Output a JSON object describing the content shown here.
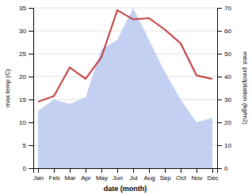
{
  "chart_data": {
    "type": "line",
    "xlabel": "date (month)",
    "ylabel": "max temp (C)",
    "y2label": "med. precipitation (kg/m2)",
    "categories": [
      "Jan",
      "Feb",
      "Mar",
      "Apr",
      "May",
      "Jun",
      "Jul",
      "Aug",
      "Sep",
      "Oct",
      "Nov",
      "Dec"
    ],
    "series": [
      {
        "type": "area",
        "color": "#b8c8f0",
        "values": [
          12.5,
          15.0,
          14.0,
          15.5,
          26.0,
          28.0,
          35.0,
          28.0,
          21.0,
          15.0,
          10.0,
          11.0
        ]
      },
      {
        "type": "line",
        "color": "#c0393b",
        "axis": "y2",
        "values": [
          29.0,
          31.5,
          44.0,
          39.0,
          48.5,
          69.0,
          65.0,
          65.5,
          60.5,
          54.5,
          40.5,
          39.0
        ]
      }
    ],
    "ylim": [
      0,
      35
    ],
    "yticks": [
      0,
      5,
      10,
      15,
      20,
      25,
      30,
      35
    ],
    "y2lim": [
      0,
      70
    ],
    "y2ticks": [
      0,
      10,
      20,
      30,
      40,
      50,
      60,
      70
    ],
    "grid": true
  }
}
